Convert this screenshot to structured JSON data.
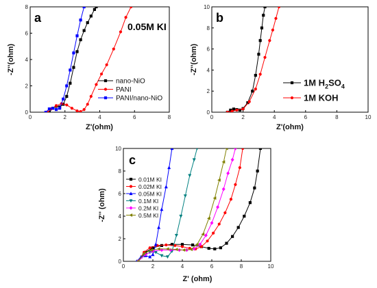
{
  "chart_data": [
    {
      "panel": "a",
      "type": "line",
      "annotation": "0.05M KI",
      "xlabel": "Z'(ohm)",
      "ylabel": "-Z''(ohm)",
      "xlim": [
        0,
        8
      ],
      "ylim": [
        0,
        8
      ],
      "xticks": [
        0,
        2,
        4,
        6,
        8
      ],
      "yticks": [
        0,
        2,
        4,
        6,
        8
      ],
      "legend": "right",
      "series": [
        {
          "name": "nano-NiO",
          "color": "#000000",
          "marker": "square",
          "x": [
            1.1,
            1.3,
            1.5,
            1.7,
            1.9,
            2.1,
            2.3,
            2.5,
            2.7,
            2.9,
            3.1,
            3.3,
            3.5,
            3.7,
            3.8
          ],
          "y": [
            0.0,
            0.3,
            0.45,
            0.4,
            0.6,
            1.2,
            2.2,
            3.4,
            4.6,
            5.5,
            6.2,
            6.8,
            7.3,
            7.8,
            8.0
          ]
        },
        {
          "name": "PANI",
          "color": "#ff0000",
          "marker": "circle",
          "x": [
            1.0,
            1.2,
            1.5,
            1.8,
            2.1,
            2.4,
            2.7,
            2.9,
            3.1,
            3.3,
            3.5,
            3.8,
            4.1,
            4.4,
            4.8,
            5.2,
            5.5,
            5.8
          ],
          "y": [
            0.0,
            0.25,
            0.5,
            0.65,
            0.55,
            0.3,
            0.1,
            0.05,
            0.2,
            0.6,
            1.2,
            2.1,
            2.9,
            3.6,
            4.8,
            6.1,
            7.2,
            8.0
          ]
        },
        {
          "name": "PANI/nano-NiO",
          "color": "#0000ff",
          "marker": "square",
          "x": [
            0.9,
            1.1,
            1.3,
            1.5,
            1.7,
            1.9,
            2.1,
            2.3,
            2.5,
            2.7,
            2.9,
            3.1
          ],
          "y": [
            0.0,
            0.25,
            0.3,
            0.2,
            0.3,
            1.0,
            2.0,
            3.2,
            4.5,
            5.8,
            7.0,
            8.0
          ]
        }
      ]
    },
    {
      "panel": "b",
      "type": "line",
      "xlabel": "Z'(ohm)",
      "ylabel": "-Z''(ohm)",
      "xlim": [
        0,
        10
      ],
      "ylim": [
        0,
        10
      ],
      "xticks": [
        0,
        2,
        4,
        6,
        8,
        10
      ],
      "yticks": [
        0,
        2,
        4,
        6,
        8,
        10
      ],
      "legend": "right",
      "series": [
        {
          "name": "1M H2SO4",
          "name_main": "1M H",
          "name_sub": "2",
          "name_rest": "SO",
          "name_sub2": "4",
          "color": "#000000",
          "marker": "square",
          "x": [
            1.0,
            1.2,
            1.4,
            1.6,
            1.8,
            2.0,
            2.3,
            2.6,
            2.8,
            3.0,
            3.1,
            3.2,
            3.3,
            3.4
          ],
          "y": [
            0.0,
            0.2,
            0.3,
            0.25,
            0.2,
            0.35,
            0.9,
            2.0,
            3.5,
            5.5,
            6.8,
            8.0,
            9.2,
            10.0
          ]
        },
        {
          "name": "1M KOH",
          "color": "#ff0000",
          "marker": "circle",
          "x": [
            1.0,
            1.3,
            1.6,
            2.0,
            2.4,
            2.8,
            3.1,
            3.4,
            3.7,
            3.9,
            4.1,
            4.3
          ],
          "y": [
            0.0,
            0.1,
            0.2,
            0.3,
            1.0,
            2.2,
            3.6,
            5.2,
            6.8,
            7.8,
            8.9,
            10.0
          ]
        }
      ]
    },
    {
      "panel": "c",
      "type": "line",
      "xlabel": "Z' (ohm)",
      "ylabel": "-Z'' (ohm)",
      "xlim": [
        0,
        10
      ],
      "ylim": [
        0,
        10
      ],
      "xticks": [
        0,
        2,
        4,
        6,
        8,
        10
      ],
      "yticks": [
        0,
        2,
        4,
        6,
        8,
        10
      ],
      "legend": "left",
      "series": [
        {
          "name": "0.01M KI",
          "color": "#000000",
          "marker": "square",
          "x": [
            1.0,
            1.5,
            2.0,
            2.6,
            3.3,
            4.0,
            4.7,
            5.3,
            5.8,
            6.2,
            6.6,
            7.0,
            7.4,
            7.8,
            8.2,
            8.6,
            8.9,
            9.1,
            9.3
          ],
          "y": [
            0.0,
            0.8,
            1.2,
            1.4,
            1.5,
            1.5,
            1.45,
            1.3,
            1.15,
            1.1,
            1.2,
            1.6,
            2.2,
            3.0,
            4.0,
            5.2,
            6.5,
            8.0,
            10.0
          ]
        },
        {
          "name": "0.02M KI",
          "color": "#ff0000",
          "marker": "circle",
          "x": [
            1.0,
            1.4,
            1.8,
            2.3,
            2.9,
            3.5,
            4.0,
            4.5,
            4.9,
            5.3,
            5.7,
            6.1,
            6.5,
            6.9,
            7.3,
            7.6,
            7.9,
            8.1
          ],
          "y": [
            0.0,
            0.8,
            1.2,
            1.4,
            1.45,
            1.4,
            1.3,
            1.15,
            1.1,
            1.3,
            1.8,
            2.5,
            3.3,
            4.3,
            5.5,
            6.8,
            8.3,
            10.0
          ]
        },
        {
          "name": "0.05M KI",
          "color": "#0000ff",
          "marker": "triangle-up",
          "x": [
            0.9,
            1.2,
            1.5,
            1.8,
            2.0,
            2.2,
            2.4,
            2.6,
            2.9,
            3.1,
            3.3
          ],
          "y": [
            0.0,
            0.4,
            0.5,
            0.4,
            0.6,
            1.5,
            3.0,
            4.6,
            6.6,
            8.3,
            10.0
          ]
        },
        {
          "name": "0.1M KI",
          "color": "#008080",
          "marker": "triangle-down",
          "x": [
            1.0,
            1.4,
            1.8,
            2.2,
            2.6,
            3.0,
            3.3,
            3.6,
            3.9,
            4.2,
            4.5,
            4.8,
            5.0
          ],
          "y": [
            0.0,
            0.5,
            0.8,
            0.8,
            0.5,
            0.4,
            0.9,
            2.3,
            4.0,
            5.8,
            7.6,
            9.0,
            10.0
          ]
        },
        {
          "name": "0.2M KI",
          "color": "#ff00ff",
          "marker": "diamond",
          "x": [
            1.0,
            1.5,
            2.0,
            2.6,
            3.2,
            3.8,
            4.3,
            4.8,
            5.2,
            5.6,
            6.0,
            6.4,
            6.8,
            7.1,
            7.4,
            7.6
          ],
          "y": [
            0.0,
            0.6,
            0.9,
            1.0,
            1.0,
            1.0,
            1.0,
            1.1,
            1.5,
            2.3,
            3.4,
            4.8,
            6.4,
            7.8,
            9.0,
            10.0
          ]
        },
        {
          "name": "0.5M KI",
          "color": "#808000",
          "marker": "triangle-left",
          "x": [
            1.0,
            1.4,
            1.9,
            2.4,
            3.0,
            3.6,
            4.1,
            4.6,
            5.0,
            5.4,
            5.8,
            6.2,
            6.5,
            6.8,
            7.0
          ],
          "y": [
            0.0,
            0.7,
            1.0,
            1.1,
            1.1,
            1.05,
            1.0,
            1.05,
            1.5,
            2.4,
            3.8,
            5.6,
            7.2,
            8.8,
            10.0
          ]
        }
      ]
    }
  ]
}
